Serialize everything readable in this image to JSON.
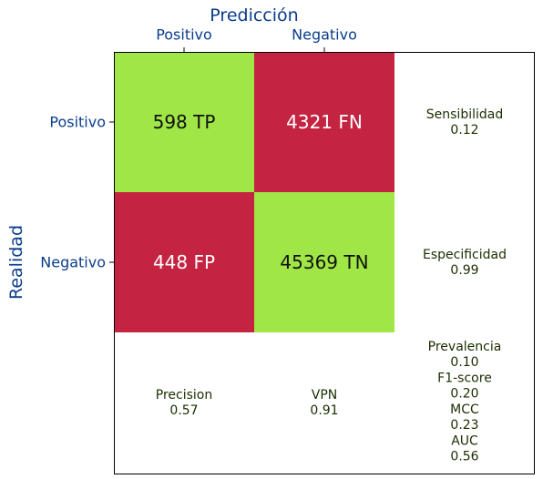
{
  "chart_data": {
    "type": "heatmap",
    "title": "Predicción",
    "ylabel": "Realidad",
    "x_categories": [
      "Positivo",
      "Negativo"
    ],
    "y_categories": [
      "Positivo",
      "Negativo"
    ],
    "cells": [
      [
        {
          "value": 598,
          "label": "TP",
          "text": "598 TP",
          "color": "#9fe646",
          "text_color": "#111111"
        },
        {
          "value": 4321,
          "label": "FN",
          "text": "4321 FN",
          "color": "#c42341",
          "text_color": "#ffffff"
        }
      ],
      [
        {
          "value": 448,
          "label": "FP",
          "text": "448 FP",
          "color": "#c42341",
          "text_color": "#ffffff"
        },
        {
          "value": 45369,
          "label": "TN",
          "text": "45369 TN",
          "color": "#9fe646",
          "text_color": "#111111"
        }
      ]
    ],
    "row_metrics": [
      {
        "name": "Sensibilidad",
        "value": "0.12"
      },
      {
        "name": "Especificidad",
        "value": "0.99"
      }
    ],
    "col_metrics": [
      {
        "name": "Precision",
        "value": "0.57"
      },
      {
        "name": "VPN",
        "value": "0.91"
      }
    ],
    "summary_metrics": [
      {
        "name": "Prevalencia",
        "value": "0.10"
      },
      {
        "name": "F1-score",
        "value": "0.20"
      },
      {
        "name": "MCC",
        "value": "0.23"
      },
      {
        "name": "AUC",
        "value": "0.56"
      }
    ],
    "colors": {
      "title": "#0b3d8c",
      "tick_label": "#0b3d8c",
      "metric_text": "#1a2e00",
      "correct": "#9fe646",
      "error": "#c42341"
    }
  }
}
